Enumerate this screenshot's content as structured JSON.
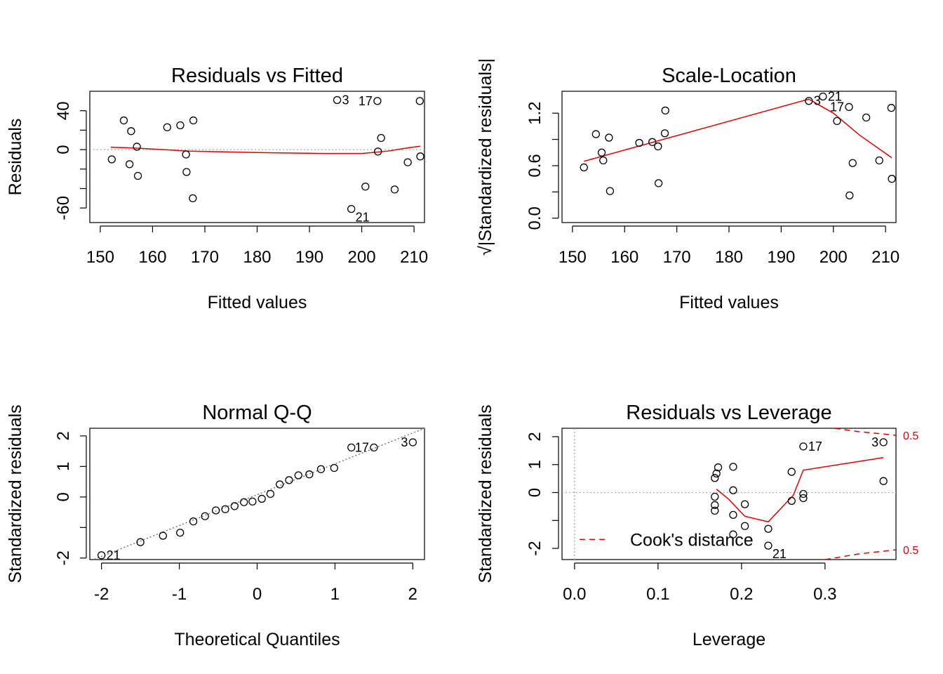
{
  "chart_data": [
    {
      "id": "rvf",
      "type": "scatter",
      "title": "Residuals vs Fitted",
      "xlabel": "Fitted values",
      "ylabel": "Residuals",
      "xlim": [
        148,
        212
      ],
      "ylim": [
        -75,
        60
      ],
      "xticks": [
        150,
        160,
        170,
        180,
        190,
        200,
        210
      ],
      "yticks": [
        -60,
        -40,
        -20,
        0,
        20,
        40
      ],
      "ytick_labels": [
        "-60",
        "",
        "",
        "0",
        "",
        "40"
      ],
      "ref_line": {
        "y": 0
      },
      "points": [
        [
          152.2,
          -10
        ],
        [
          154.5,
          30
        ],
        [
          155.6,
          -15
        ],
        [
          155.9,
          19
        ],
        [
          157.0,
          3
        ],
        [
          157.2,
          -27
        ],
        [
          162.8,
          23
        ],
        [
          165.3,
          25
        ],
        [
          166.4,
          -5
        ],
        [
          166.5,
          -23
        ],
        [
          167.7,
          -50
        ],
        [
          167.8,
          30
        ],
        [
          195.3,
          51
        ],
        [
          198.0,
          -61
        ],
        [
          200.7,
          -38
        ],
        [
          203.0,
          50
        ],
        [
          203.1,
          -2
        ],
        [
          203.7,
          12
        ],
        [
          206.3,
          -41
        ],
        [
          208.8,
          -13
        ],
        [
          211.2,
          -7
        ],
        [
          211.1,
          50
        ]
      ],
      "point_labels": [
        {
          "text": "3",
          "x": 195.3,
          "y": 51,
          "side": "right"
        },
        {
          "text": "17",
          "x": 203.0,
          "y": 50,
          "side": "left"
        },
        {
          "text": "21",
          "x": 198.0,
          "y": -61,
          "side": "below-right"
        }
      ],
      "smooth": [
        [
          152,
          2.5
        ],
        [
          157,
          1.5
        ],
        [
          167,
          -1.5
        ],
        [
          180,
          -3
        ],
        [
          193,
          -4
        ],
        [
          200,
          -4
        ],
        [
          205,
          -1.5
        ],
        [
          209,
          2
        ],
        [
          211.2,
          3.5
        ]
      ]
    },
    {
      "id": "sl",
      "type": "scatter",
      "title": "Scale-Location",
      "xlabel": "Fitted values",
      "ylabel": "√|Standardized residuals|",
      "xlim": [
        148,
        212
      ],
      "ylim": [
        -0.05,
        1.45
      ],
      "xticks": [
        150,
        160,
        170,
        180,
        190,
        200,
        210
      ],
      "yticks": [
        0.0,
        0.3,
        0.6,
        0.9,
        1.2
      ],
      "ytick_labels": [
        "0.0",
        "",
        "0.6",
        "",
        "1.2"
      ],
      "points": [
        [
          152.2,
          0.58
        ],
        [
          154.5,
          0.96
        ],
        [
          155.6,
          0.75
        ],
        [
          155.9,
          0.66
        ],
        [
          157.0,
          0.92
        ],
        [
          157.2,
          0.31
        ],
        [
          162.8,
          0.86
        ],
        [
          165.3,
          0.87
        ],
        [
          166.4,
          0.82
        ],
        [
          166.5,
          0.4
        ],
        [
          167.7,
          0.97
        ],
        [
          167.8,
          1.23
        ],
        [
          195.3,
          1.34
        ],
        [
          198.0,
          1.39
        ],
        [
          200.7,
          1.11
        ],
        [
          203.0,
          1.27
        ],
        [
          203.1,
          0.26
        ],
        [
          203.7,
          0.63
        ],
        [
          206.3,
          1.15
        ],
        [
          208.8,
          0.66
        ],
        [
          211.2,
          0.45
        ],
        [
          211.1,
          1.26
        ]
      ],
      "point_labels": [
        {
          "text": "21",
          "x": 198.0,
          "y": 1.39,
          "side": "right"
        },
        {
          "text": "3",
          "x": 195.3,
          "y": 1.34,
          "side": "right"
        },
        {
          "text": "17",
          "x": 203.0,
          "y": 1.27,
          "side": "left"
        }
      ],
      "smooth": [
        [
          152.2,
          0.65
        ],
        [
          195.3,
          1.36
        ],
        [
          200,
          1.2
        ],
        [
          205,
          0.95
        ],
        [
          211.2,
          0.69
        ]
      ]
    },
    {
      "id": "qq",
      "type": "scatter",
      "title": "Normal Q-Q",
      "xlabel": "Theoretical Quantiles",
      "ylabel": "Standardized residuals",
      "xlim": [
        -2.15,
        2.15
      ],
      "ylim": [
        -2.05,
        2.25
      ],
      "xticks": [
        -2,
        -1,
        0,
        1,
        2
      ],
      "yticks": [
        -2,
        -1,
        0,
        1,
        2
      ],
      "ytick_labels": [
        "-2",
        "",
        "0",
        "1",
        "2"
      ],
      "ref_line": {
        "from": [
          -2.3,
          -2.25
        ],
        "to": [
          2.3,
          2.4
        ]
      },
      "points": [
        [
          -2.0,
          -1.91
        ],
        [
          -1.5,
          -1.48
        ],
        [
          -1.21,
          -1.27
        ],
        [
          -0.99,
          -1.17
        ],
        [
          -0.82,
          -0.8
        ],
        [
          -0.67,
          -0.63
        ],
        [
          -0.53,
          -0.44
        ],
        [
          -0.41,
          -0.4
        ],
        [
          -0.29,
          -0.3
        ],
        [
          -0.17,
          -0.17
        ],
        [
          -0.06,
          -0.15
        ],
        [
          0.06,
          -0.06
        ],
        [
          0.17,
          0.1
        ],
        [
          0.29,
          0.41
        ],
        [
          0.41,
          0.55
        ],
        [
          0.53,
          0.71
        ],
        [
          0.67,
          0.74
        ],
        [
          0.82,
          0.91
        ],
        [
          0.99,
          0.95
        ],
        [
          1.21,
          1.62
        ],
        [
          1.5,
          1.62
        ],
        [
          2.0,
          1.79
        ]
      ],
      "point_labels": [
        {
          "text": "21",
          "x": -2.0,
          "y": -1.91,
          "side": "right"
        },
        {
          "text": "17",
          "x": 1.5,
          "y": 1.62,
          "side": "left"
        },
        {
          "text": "3",
          "x": 2.0,
          "y": 1.79,
          "side": "left"
        }
      ]
    },
    {
      "id": "rvl",
      "type": "scatter",
      "title": "Residuals vs Leverage",
      "xlabel": "Leverage",
      "ylabel": "Standardized residuals",
      "xlim": [
        -0.015,
        0.385
      ],
      "ylim": [
        -2.4,
        2.3
      ],
      "xticks": [
        0.0,
        0.1,
        0.2,
        0.3
      ],
      "xtick_labels": [
        "0.0",
        "0.1",
        "0.2",
        "0.3"
      ],
      "yticks": [
        -2,
        -1,
        0,
        1,
        2
      ],
      "ytick_labels": [
        "-2",
        "",
        "0",
        "1",
        "2"
      ],
      "ref_line": {
        "y": 0,
        "x": 0
      },
      "points": [
        [
          0.168,
          0.52
        ],
        [
          0.17,
          0.68
        ],
        [
          0.172,
          0.9
        ],
        [
          0.168,
          -0.15
        ],
        [
          0.168,
          -0.45
        ],
        [
          0.168,
          -0.65
        ],
        [
          0.19,
          0.92
        ],
        [
          0.19,
          0.08
        ],
        [
          0.19,
          -0.8
        ],
        [
          0.19,
          -1.5
        ],
        [
          0.204,
          -0.42
        ],
        [
          0.204,
          -1.2
        ],
        [
          0.232,
          -1.3
        ],
        [
          0.232,
          -1.9
        ],
        [
          0.26,
          0.74
        ],
        [
          0.26,
          -0.3
        ],
        [
          0.274,
          -0.05
        ],
        [
          0.274,
          -0.2
        ],
        [
          0.274,
          1.65
        ],
        [
          0.37,
          1.8
        ],
        [
          0.37,
          0.41
        ]
      ],
      "point_labels": [
        {
          "text": "17",
          "x": 0.274,
          "y": 1.65,
          "side": "right"
        },
        {
          "text": "3",
          "x": 0.37,
          "y": 1.8,
          "side": "left"
        },
        {
          "text": "21",
          "x": 0.232,
          "y": -1.9,
          "side": "below-right"
        }
      ],
      "smooth": [
        [
          0.17,
          0.12
        ],
        [
          0.185,
          -0.25
        ],
        [
          0.204,
          -0.85
        ],
        [
          0.232,
          -1.05
        ],
        [
          0.262,
          -0.1
        ],
        [
          0.274,
          0.8
        ],
        [
          0.37,
          1.25
        ]
      ],
      "cook_label": "0.5",
      "legend": {
        "label": "Cook's distance",
        "position": "bottom-left"
      }
    }
  ]
}
